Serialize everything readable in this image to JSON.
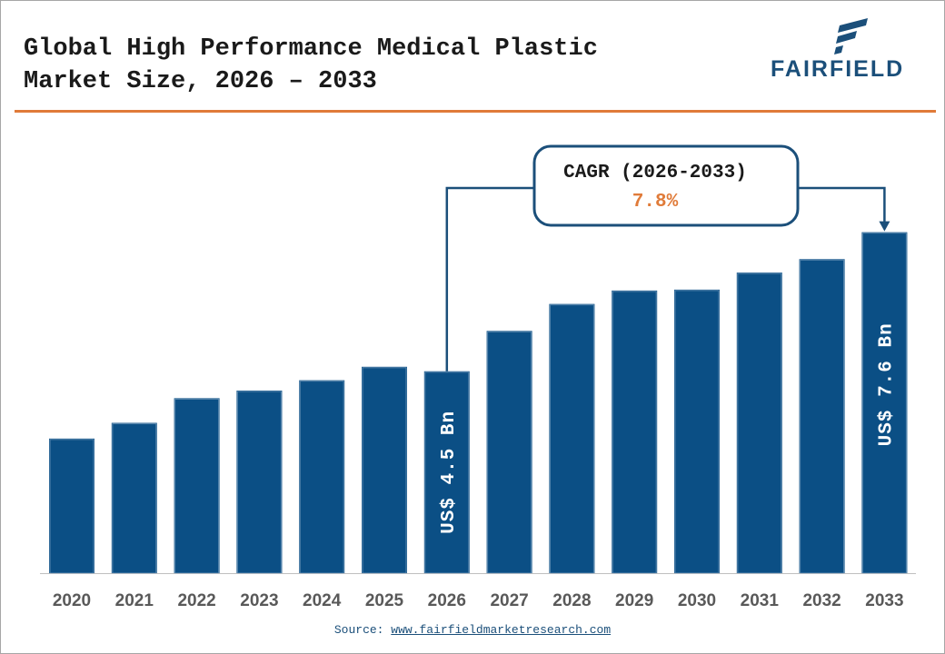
{
  "header": {
    "title_line1": "Global High Performance Medical Plastic",
    "title_line2": "Market Size, 2026 – 2033",
    "logo_text": "FAIRFIELD"
  },
  "colors": {
    "bar": "#0b4f85",
    "accent": "#e07b39",
    "callout_border": "#1b4f7a",
    "text": "#1a1a1a",
    "axis_label": "#595959"
  },
  "chart_data": {
    "type": "bar",
    "categories": [
      "2020",
      "2021",
      "2022",
      "2023",
      "2024",
      "2025",
      "2026",
      "2027",
      "2028",
      "2029",
      "2030",
      "2031",
      "2032",
      "2033"
    ],
    "values": [
      3.0,
      3.35,
      3.9,
      4.07,
      4.3,
      4.6,
      4.5,
      5.4,
      6.0,
      6.3,
      6.32,
      6.7,
      7.0,
      7.6
    ],
    "ylim": [
      0,
      8.2
    ],
    "grid": false,
    "bar_labels": [
      {
        "category": "2026",
        "text": "US$ 4.5 Bn"
      },
      {
        "category": "2033",
        "text": "US$ 7.6 Bn"
      }
    ],
    "callout": {
      "label": "CAGR (2026-2033)",
      "value": "7.8%",
      "from": "2026",
      "to": "2033"
    }
  },
  "footer": {
    "source_prefix": "Source: ",
    "source_link": "www.fairfieldmarketresearch.com"
  }
}
